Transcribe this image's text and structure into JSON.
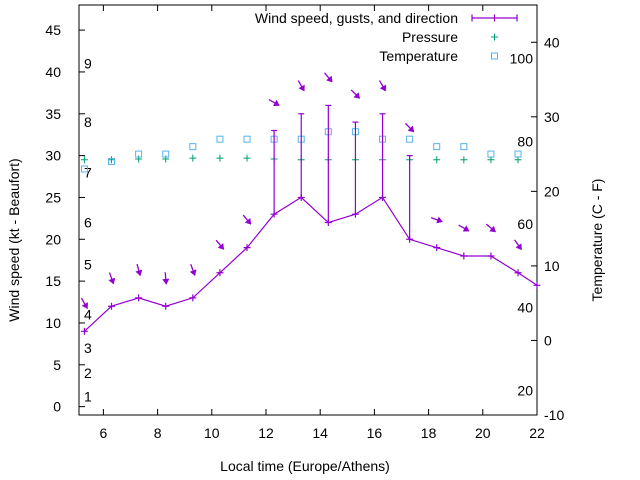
{
  "chart_data": {
    "type": "line",
    "title": "",
    "xlabel": "Local time (Europe/Athens)",
    "ylabel_left": "Wind speed (kt - Beaufort)",
    "ylabel_right": "Temperature (C - F)",
    "xlim": [
      5.1,
      22
    ],
    "ylim_left": [
      -1,
      48
    ],
    "ylim_right": [
      -10,
      45
    ],
    "x_ticks": [
      6,
      8,
      10,
      12,
      14,
      16,
      18,
      20,
      22
    ],
    "y_left_ticks": [
      0,
      5,
      10,
      15,
      20,
      25,
      30,
      35,
      40,
      45
    ],
    "y_right_ticks": [
      -10,
      0,
      10,
      20,
      30,
      40
    ],
    "beaufort_labels": [
      {
        "label": "1",
        "kt": 1.2
      },
      {
        "label": "2",
        "kt": 4
      },
      {
        "label": "3",
        "kt": 7
      },
      {
        "label": "4",
        "kt": 11
      },
      {
        "label": "5",
        "kt": 17
      },
      {
        "label": "6",
        "kt": 22
      },
      {
        "label": "7",
        "kt": 28
      },
      {
        "label": "8",
        "kt": 34
      },
      {
        "label": "9",
        "kt": 41
      }
    ],
    "fahrenheit_labels": [
      {
        "label": "20",
        "celsius": -6.7
      },
      {
        "label": "40",
        "celsius": 4.4
      },
      {
        "label": "60",
        "celsius": 15.6
      },
      {
        "label": "80",
        "celsius": 26.7
      },
      {
        "label": "100",
        "celsius": 37.8
      }
    ],
    "legend_position": "top-right",
    "series": [
      {
        "name": "Wind speed, gusts, and direction",
        "color": "#9400d3",
        "x": [
          5.3,
          6.3,
          7.3,
          8.3,
          9.3,
          10.3,
          11.3,
          12.3,
          13.3,
          14.3,
          15.3,
          16.3,
          17.3,
          18.3,
          19.3,
          20.3,
          21.3,
          22
        ],
        "speed": [
          9,
          12,
          13,
          12,
          13,
          16,
          19,
          23,
          25,
          22,
          23,
          25,
          20,
          19,
          18,
          18,
          16,
          14.5
        ],
        "gust": [
          null,
          null,
          null,
          null,
          null,
          null,
          null,
          33,
          35,
          36,
          34,
          35,
          30,
          null,
          null,
          null,
          null,
          null
        ],
        "direction_deg": [
          330,
          340,
          345,
          355,
          340,
          320,
          320,
          300,
          330,
          320,
          315,
          330,
          315,
          290,
          300,
          310,
          325,
          null
        ]
      },
      {
        "name": "Pressure",
        "color": "#009e73",
        "x": [
          5.3,
          6.3,
          7.3,
          8.3,
          9.3,
          10.3,
          11.3,
          12.3,
          13.3,
          14.3,
          15.3,
          16.3,
          17.3,
          18.3,
          19.3,
          20.3,
          21.3
        ],
        "y_left": [
          29.5,
          29.5,
          29.6,
          29.6,
          29.7,
          29.7,
          29.7,
          29.6,
          29.5,
          29.5,
          29.5,
          29.5,
          29.5,
          29.5,
          29.5,
          29.5,
          29.5
        ]
      },
      {
        "name": "Temperature",
        "color": "#56b4e9",
        "x": [
          5.3,
          6.3,
          7.3,
          8.3,
          9.3,
          10.3,
          11.3,
          12.3,
          13.3,
          14.3,
          15.3,
          16.3,
          17.3,
          18.3,
          19.3,
          20.3,
          21.3
        ],
        "celsius": [
          23,
          24,
          25,
          25,
          26,
          27,
          27,
          27,
          27,
          28,
          28,
          27,
          27,
          26,
          26,
          25,
          25
        ]
      }
    ]
  }
}
